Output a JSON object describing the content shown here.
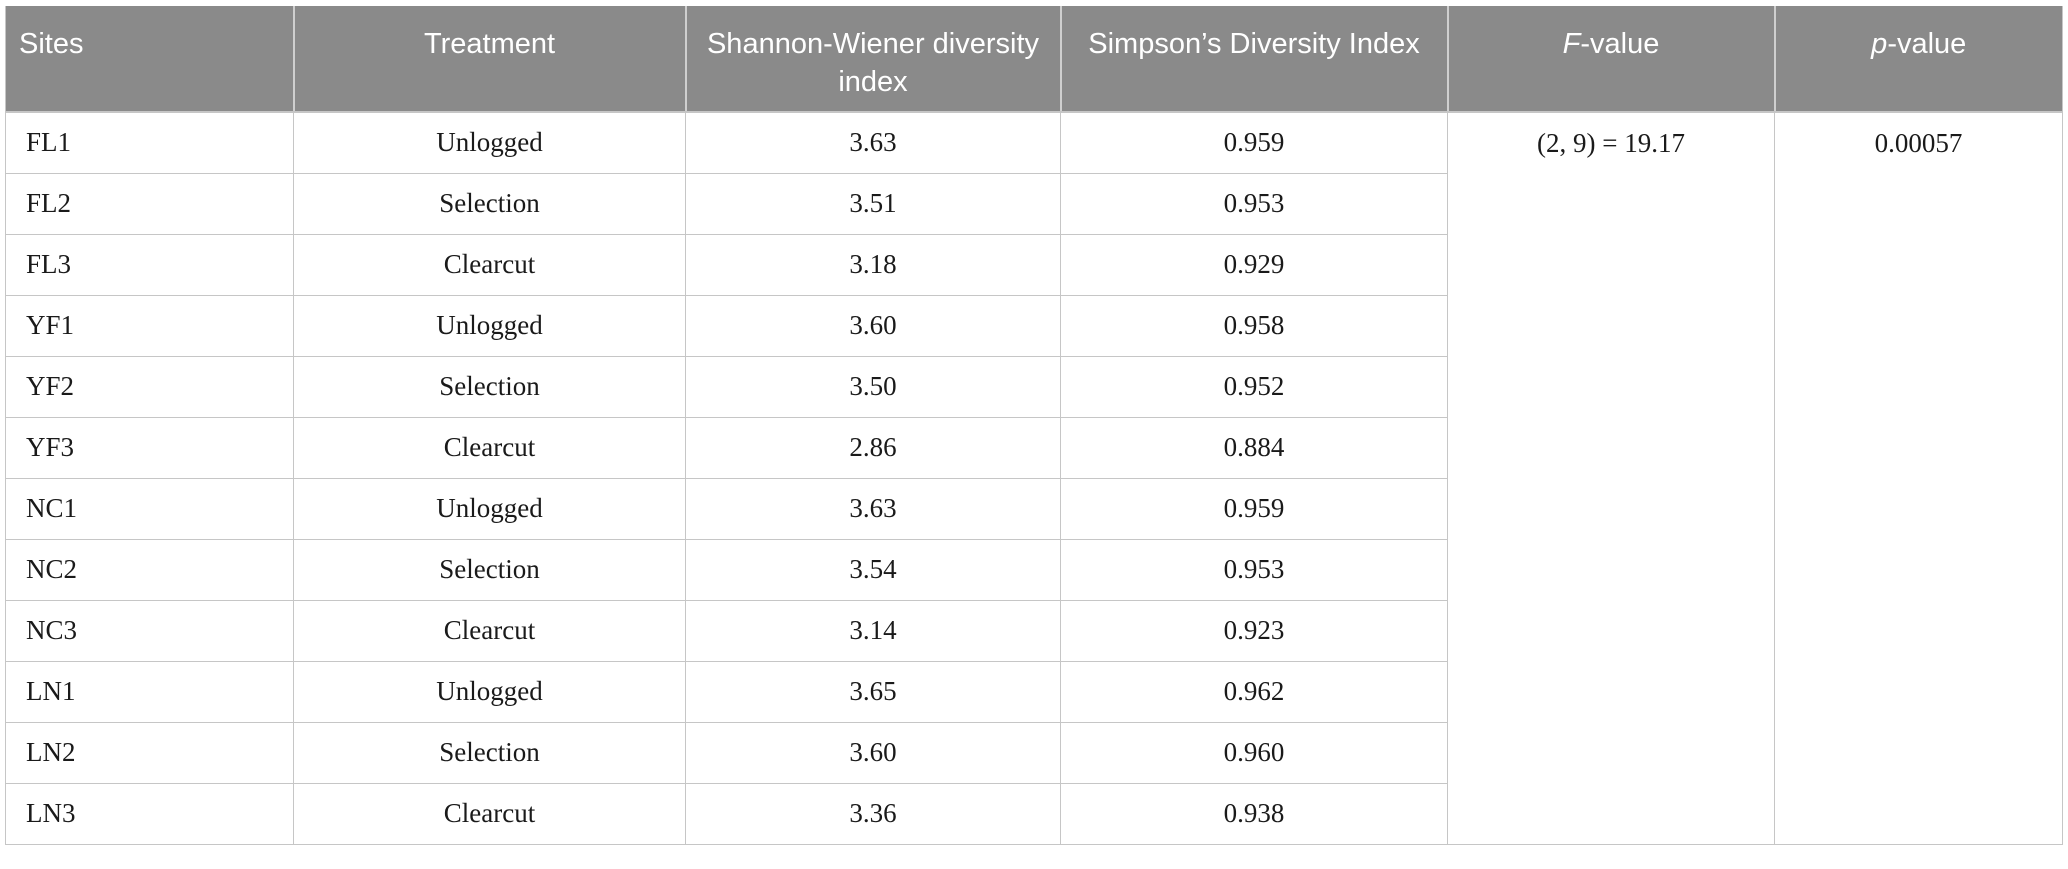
{
  "table": {
    "header": {
      "sites": "Sites",
      "treatment": "Treatment",
      "shannon": "Shannon-Wiener diversity index",
      "simpson": "Simpson’s Diversity Index",
      "f_italic": "F",
      "f_rest": "-value",
      "p_italic": "p",
      "p_rest": "-value"
    },
    "rows": [
      {
        "site": "FL1",
        "treatment": "Unlogged",
        "shannon": "3.63",
        "simpson": "0.959"
      },
      {
        "site": "FL2",
        "treatment": "Selection",
        "shannon": "3.51",
        "simpson": "0.953"
      },
      {
        "site": "FL3",
        "treatment": "Clearcut",
        "shannon": "3.18",
        "simpson": "0.929"
      },
      {
        "site": "YF1",
        "treatment": "Unlogged",
        "shannon": "3.60",
        "simpson": "0.958"
      },
      {
        "site": "YF2",
        "treatment": "Selection",
        "shannon": "3.50",
        "simpson": "0.952"
      },
      {
        "site": "YF3",
        "treatment": "Clearcut",
        "shannon": "2.86",
        "simpson": "0.884"
      },
      {
        "site": "NC1",
        "treatment": "Unlogged",
        "shannon": "3.63",
        "simpson": "0.959"
      },
      {
        "site": "NC2",
        "treatment": "Selection",
        "shannon": "3.54",
        "simpson": "0.953"
      },
      {
        "site": "NC3",
        "treatment": "Clearcut",
        "shannon": "3.14",
        "simpson": "0.923"
      },
      {
        "site": "LN1",
        "treatment": "Unlogged",
        "shannon": "3.65",
        "simpson": "0.962"
      },
      {
        "site": "LN2",
        "treatment": "Selection",
        "shannon": "3.60",
        "simpson": "0.960"
      },
      {
        "site": "LN3",
        "treatment": "Clearcut",
        "shannon": "3.36",
        "simpson": "0.938"
      }
    ],
    "anova": {
      "f_value": "(2, 9) = 19.17",
      "p_value": "0.00057"
    }
  },
  "colors": {
    "header_bg": "#8a8a8a",
    "header_text": "#ffffff",
    "body_text": "#1a1a1a",
    "grid_line": "#c6c6c6"
  }
}
